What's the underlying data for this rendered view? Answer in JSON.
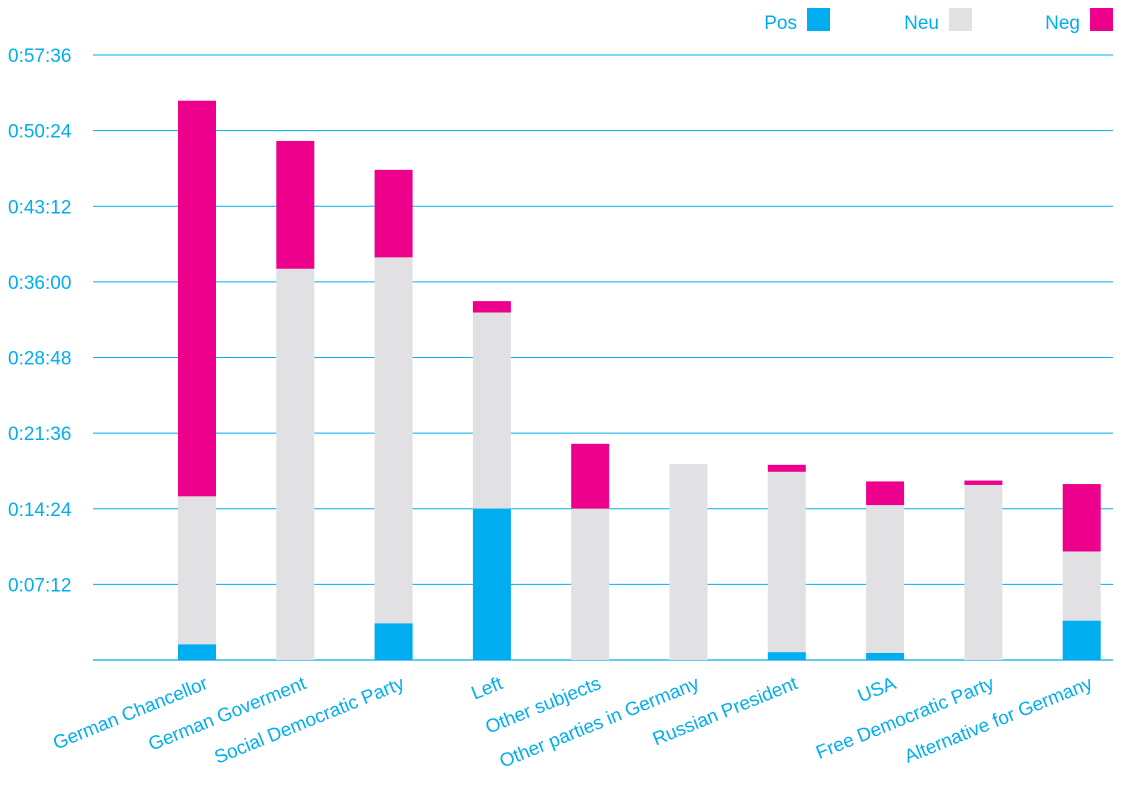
{
  "chart_data": {
    "type": "bar",
    "stacked": true,
    "categories": [
      "German Chancellor",
      "German Goverment",
      "Social Democratic Party",
      "Left",
      "Other subjects",
      "Other parties in Germany",
      "Russian President",
      "USA",
      "Free Democratic Party",
      "Alternative for Germany"
    ],
    "series": [
      {
        "name": "Pos",
        "color": "#00aeef",
        "values": [
          90,
          0,
          210,
          865,
          0,
          0,
          45,
          40,
          0,
          225
        ]
      },
      {
        "name": "Neu",
        "color": "#e1e1e3",
        "values": [
          845,
          2235,
          2090,
          1120,
          865,
          1120,
          1030,
          845,
          1000,
          395
        ]
      },
      {
        "name": "Neg",
        "color": "#ec008c",
        "values": [
          2260,
          730,
          500,
          65,
          370,
          0,
          40,
          135,
          25,
          385
        ]
      }
    ],
    "yticks": [
      "0:57:36",
      "0:50:24",
      "0:43:12",
      "0:36:00",
      "0:28:48",
      "0:21:36",
      "0:14:24",
      "0:07:12"
    ],
    "ytick_values": [
      3456,
      3024,
      2592,
      2160,
      1728,
      1296,
      864,
      432
    ],
    "ylim": [
      0,
      3456
    ],
    "y_unit": "seconds",
    "title": "",
    "xlabel": "",
    "ylabel": "",
    "grid": true,
    "legend_position": "top-right",
    "colors": {
      "axis_text": "#00aeef",
      "grid": "#00aeef",
      "background": "#ffffff"
    }
  }
}
